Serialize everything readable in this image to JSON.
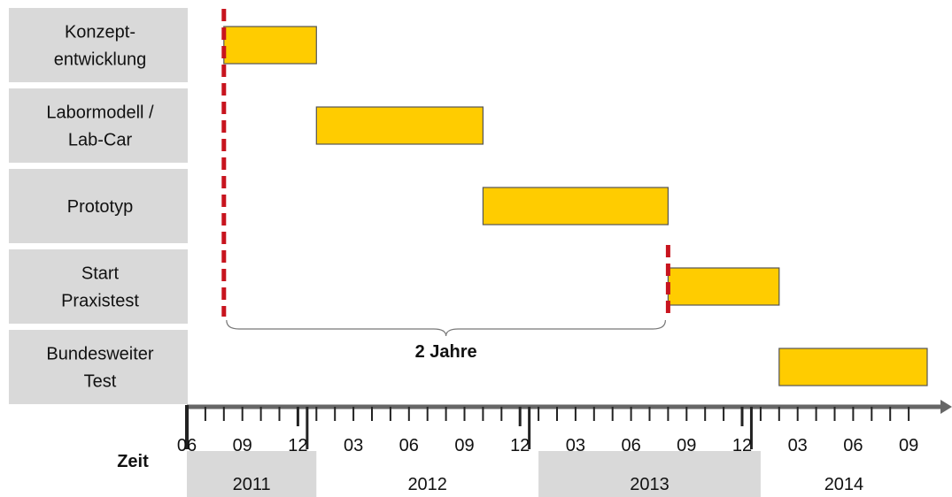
{
  "chart_data": {
    "type": "gantt",
    "time_axis_label": "Zeit",
    "x_range": [
      "2011-06",
      "2014-10"
    ],
    "tick_labels": [
      "06",
      "09",
      "12",
      "03",
      "06",
      "09",
      "12",
      "03",
      "06",
      "09",
      "12",
      "03",
      "06",
      "09"
    ],
    "tick_months": [
      "2011-06",
      "2011-09",
      "2011-12",
      "2012-03",
      "2012-06",
      "2012-09",
      "2012-12",
      "2013-03",
      "2013-06",
      "2013-09",
      "2013-12",
      "2014-03",
      "2014-06",
      "2014-09"
    ],
    "years": [
      {
        "label": "2011",
        "start": "2011-06",
        "end": "2012-01",
        "shaded": true
      },
      {
        "label": "2012",
        "start": "2012-01",
        "end": "2013-01",
        "shaded": false
      },
      {
        "label": "2013",
        "start": "2013-01",
        "end": "2014-01",
        "shaded": true
      },
      {
        "label": "2014",
        "start": "2014-01",
        "end": "2014-10",
        "shaded": false
      }
    ],
    "tasks": [
      {
        "label_lines": [
          "Konzept-",
          "entwicklung"
        ],
        "start": "2011-08",
        "end": "2012-01"
      },
      {
        "label_lines": [
          "Labormodell /",
          "Lab-Car"
        ],
        "start": "2012-01",
        "end": "2012-10"
      },
      {
        "label_lines": [
          "Prototyp"
        ],
        "start": "2012-10",
        "end": "2013-08"
      },
      {
        "label_lines": [
          "Start",
          "Praxistest"
        ],
        "start": "2013-08",
        "end": "2014-02"
      },
      {
        "label_lines": [
          "Bundesweiter",
          "Test"
        ],
        "start": "2014-02",
        "end": "2014-10"
      }
    ],
    "milestones": [
      {
        "date": "2011-08",
        "color": "#c8141e"
      },
      {
        "date": "2013-08",
        "color": "#c8141e"
      }
    ],
    "span_annotation": {
      "label": "2 Jahre",
      "start": "2011-08",
      "end": "2013-08"
    },
    "colors": {
      "bar_fill": "#ffcc00",
      "bar_stroke": "#555555",
      "label_bg": "#d9d9d9",
      "year_shade": "#d9d9d9",
      "axis": "#666666",
      "milestone": "#c8141e"
    }
  }
}
